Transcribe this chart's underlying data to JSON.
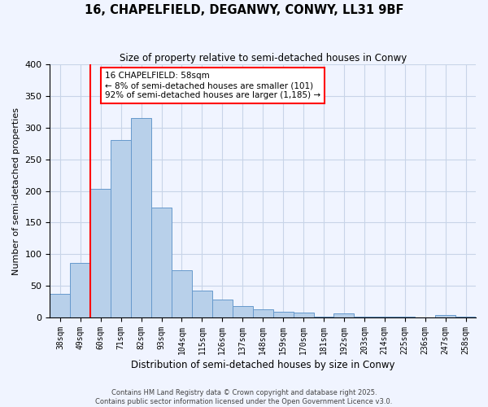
{
  "title_line1": "16, CHAPELFIELD, DEGANWY, CONWY, LL31 9BF",
  "title_line2": "Size of property relative to semi-detached houses in Conwy",
  "xlabel": "Distribution of semi-detached houses by size in Conwy",
  "ylabel": "Number of semi-detached properties",
  "categories": [
    "38sqm",
    "49sqm",
    "60sqm",
    "71sqm",
    "82sqm",
    "93sqm",
    "104sqm",
    "115sqm",
    "126sqm",
    "137sqm",
    "148sqm",
    "159sqm",
    "170sqm",
    "181sqm",
    "192sqm",
    "203sqm",
    "214sqm",
    "225sqm",
    "236sqm",
    "247sqm",
    "258sqm"
  ],
  "values": [
    38,
    86,
    204,
    280,
    315,
    174,
    75,
    42,
    28,
    18,
    13,
    9,
    8,
    2,
    6,
    2,
    1,
    1,
    0,
    4,
    2
  ],
  "bar_color": "#b8d0ea",
  "bar_edge_color": "#6699cc",
  "vline_color": "red",
  "vline_x_idx": 2,
  "annotation_title": "16 CHAPELFIELD: 58sqm",
  "annotation_line1": "← 8% of semi-detached houses are smaller (101)",
  "annotation_line2": "92% of semi-detached houses are larger (1,185) →",
  "annotation_box_color": "white",
  "annotation_box_edge": "red",
  "footer_line1": "Contains HM Land Registry data © Crown copyright and database right 2025.",
  "footer_line2": "Contains public sector information licensed under the Open Government Licence v3.0.",
  "ylim": [
    0,
    400
  ],
  "yticks": [
    0,
    50,
    100,
    150,
    200,
    250,
    300,
    350,
    400
  ],
  "bg_color": "#f0f4ff",
  "grid_color": "#c8d4e8"
}
